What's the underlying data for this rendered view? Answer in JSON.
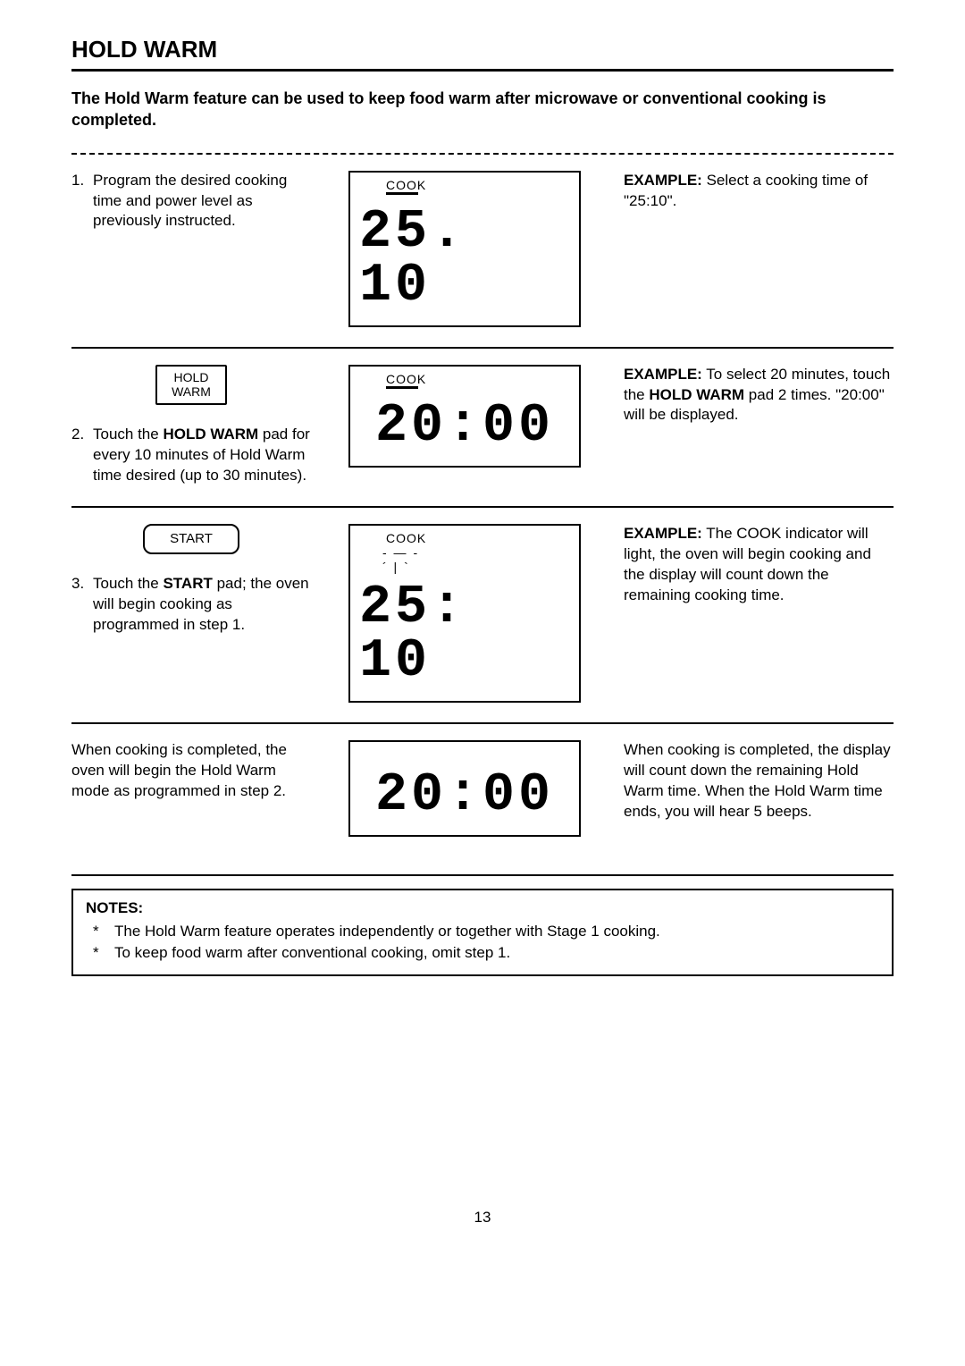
{
  "title": "HOLD WARM",
  "intro": "The Hold Warm feature can be used to keep food warm after microwave or conventional cooking is completed.",
  "steps": [
    {
      "num": "1.",
      "left_text": "Program the desired cooking time and power level as previously instructed.",
      "btn_lines": null,
      "lcd_label": "COOK",
      "lcd_underline": true,
      "lcd_rays": false,
      "lcd_value": "25. 10",
      "right_prefix": "EXAMPLE:",
      "right_text": " Select a cooking time of \"25:10\"."
    },
    {
      "num": "2.",
      "left_html": "Touch the <b>HOLD WARM</b> pad for every 10 minutes of Hold Warm time desired (up to 30 minutes).",
      "btn_lines": [
        "HOLD",
        "WARM"
      ],
      "btn_style": "small",
      "lcd_label": "COOK",
      "lcd_underline": true,
      "lcd_rays": false,
      "lcd_value": "20:00",
      "right_prefix": "EXAMPLE:",
      "right_html": " To select 20 minutes, touch the <b>HOLD WARM</b> pad 2 times. \"20:00\" will be displayed."
    },
    {
      "num": "3.",
      "left_html": "Touch the <b>START</b> pad; the oven will begin cooking as programmed in step 1.",
      "btn_lines": [
        "START"
      ],
      "btn_style": "round",
      "lcd_label": "COOK",
      "lcd_underline": false,
      "lcd_rays": true,
      "lcd_value": "25: 10",
      "right_prefix": "EXAMPLE:",
      "right_text": " The COOK indicator will light, the oven will begin cooking and the display will count down the remaining cooking time."
    },
    {
      "num": "",
      "left_text": "When cooking is completed, the oven will begin the Hold Warm mode as programmed in step 2.",
      "btn_lines": null,
      "lcd_label": "",
      "lcd_underline": false,
      "lcd_rays": false,
      "lcd_value": "20:00",
      "right_prefix": "",
      "right_text": "When cooking is completed, the display will count down the remaining Hold Warm time. When the Hold Warm time ends, you will hear 5 beeps."
    }
  ],
  "notes_title": "NOTES:",
  "notes": [
    "The Hold Warm feature operates independently or together with Stage 1 cooking.",
    "To keep food warm after conventional cooking, omit step 1."
  ],
  "page_number": "13",
  "rays_glyph": "- — -\n´ | `"
}
